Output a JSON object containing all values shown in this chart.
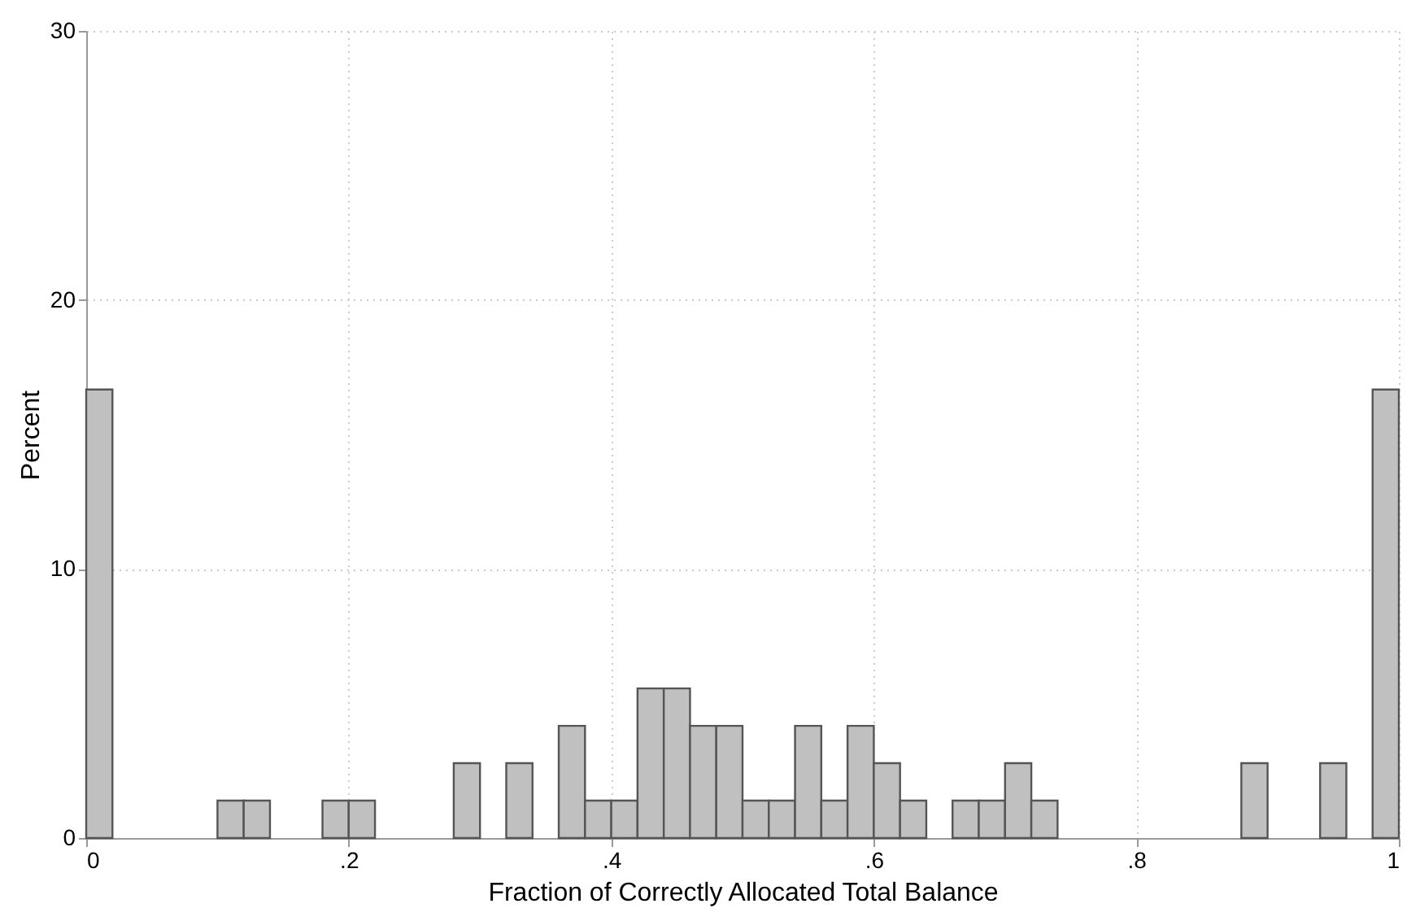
{
  "chart_data": {
    "type": "histogram",
    "xlabel": "Fraction of Correctly Allocated Total Balance",
    "ylabel": "Percent",
    "bins": [
      0,
      0.02,
      0.04,
      0.06,
      0.08,
      0.1,
      0.12,
      0.14,
      0.16,
      0.18,
      0.2,
      0.22,
      0.24,
      0.26,
      0.28,
      0.3,
      0.32,
      0.34,
      0.36,
      0.38,
      0.4,
      0.42,
      0.44,
      0.46,
      0.48,
      0.5,
      0.52,
      0.54,
      0.56,
      0.58,
      0.6,
      0.62,
      0.64,
      0.66,
      0.68,
      0.7,
      0.72,
      0.74,
      0.76,
      0.78,
      0.8,
      0.82,
      0.84,
      0.86,
      0.88,
      0.9,
      0.92,
      0.94,
      0.96,
      0.98,
      1
    ],
    "values": [
      16.67,
      0,
      0,
      0,
      0,
      1.39,
      1.39,
      0,
      0,
      1.39,
      1.39,
      0,
      0,
      0,
      2.78,
      0,
      2.78,
      0,
      4.17,
      1.39,
      1.39,
      5.56,
      5.56,
      4.17,
      4.17,
      1.39,
      1.39,
      4.17,
      1.39,
      4.17,
      2.78,
      1.39,
      0,
      1.39,
      1.39,
      2.78,
      1.39,
      0,
      0,
      0,
      0,
      0,
      0,
      0,
      2.78,
      0,
      0,
      2.78,
      0,
      16.67
    ],
    "color": "#c0c0c0",
    "xlim": [
      0,
      1
    ],
    "xticks": [
      0,
      {
        "value": 0.2,
        "label": ".2"
      },
      {
        "value": 0.4,
        "label": ".4"
      },
      {
        "value": 0.6,
        "label": ".6"
      },
      {
        "value": 0.8,
        "label": ".8"
      },
      1
    ],
    "ylim": [
      0,
      30
    ],
    "yticks": [
      0,
      10,
      20,
      30
    ],
    "grid": true
  }
}
